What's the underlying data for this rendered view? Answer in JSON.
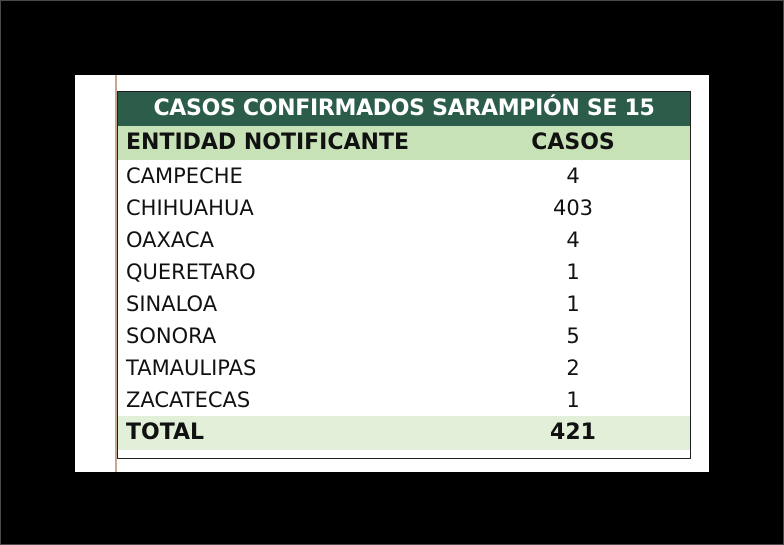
{
  "table": {
    "title": "CASOS CONFIRMADOS SARAMPIÓN SE 15",
    "columns": [
      "ENTIDAD NOTIFICANTE",
      "CASOS"
    ],
    "rows": [
      {
        "entidad": "CAMPECHE",
        "casos": "4"
      },
      {
        "entidad": "CHIHUAHUA",
        "casos": "403"
      },
      {
        "entidad": "OAXACA",
        "casos": "4"
      },
      {
        "entidad": "QUERETARO",
        "casos": "1"
      },
      {
        "entidad": "SINALOA",
        "casos": "1"
      },
      {
        "entidad": "SONORA",
        "casos": "5"
      },
      {
        "entidad": "TAMAULIPAS",
        "casos": "2"
      },
      {
        "entidad": "ZACATECAS",
        "casos": "1"
      }
    ],
    "total": {
      "label": "TOTAL",
      "value": "421"
    }
  },
  "colors": {
    "title_bg": "#2c5d4b",
    "header_bg": "#c6e2b6",
    "total_bg": "#e2efd9",
    "background": "#000000"
  }
}
